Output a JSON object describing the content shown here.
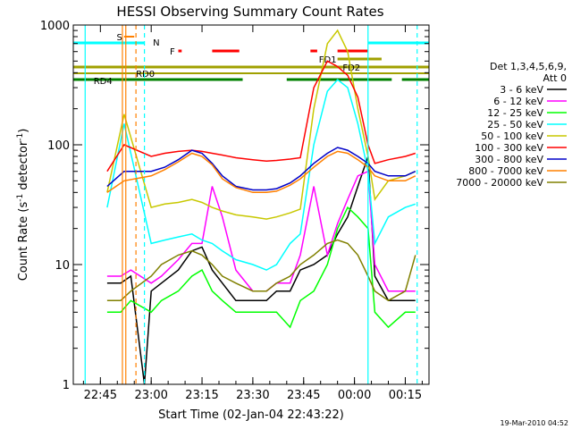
{
  "chart_data": {
    "type": "line",
    "title": "HESSI Observing Summary Count Rates",
    "xlabel": "Start Time (02-Jan-04 22:43:22)",
    "ylabel_main": "Count Rate (s",
    "ylabel_sup1": "-1",
    "ylabel_mid": " detector",
    "ylabel_sup2": "-1",
    "ylabel_end": ")",
    "timestamp": "19-Mar-2010 04:52",
    "x_range_minutes": [
      -3.37,
      25.0
    ],
    "y_range": [
      1,
      1000
    ],
    "y_scale": "log",
    "x_ticks": [
      {
        "label": "22:45",
        "t": -15
      },
      {
        "label": "23:00",
        "t": 0
      },
      {
        "label": "23:15",
        "t": 15
      },
      {
        "label": "23:30",
        "t": 30
      },
      {
        "label": "23:45",
        "t": 45
      },
      {
        "label": "00:00",
        "t": 60
      },
      {
        "label": "00:15",
        "t": 75
      }
    ],
    "y_ticks": [
      {
        "label": "1",
        "v": 1
      },
      {
        "label": "10",
        "v": 10
      },
      {
        "label": "100",
        "v": 100
      },
      {
        "label": "1000",
        "v": 1000
      }
    ],
    "legend": {
      "header1": "Det 1,3,4,5,6,9,",
      "header2": "Att 0",
      "entries": [
        {
          "name": "3 - 6 keV",
          "color": "#000000"
        },
        {
          "name": "6 - 12 keV",
          "color": "#ff00ff"
        },
        {
          "name": "12 - 25 keV",
          "color": "#00ff00"
        },
        {
          "name": "25 - 50 keV",
          "color": "#00ffff"
        },
        {
          "name": "50 - 100 keV",
          "color": "#c8c800"
        },
        {
          "name": "100 - 300 keV",
          "color": "#ff0000"
        },
        {
          "name": "300 - 800 keV",
          "color": "#0000c8"
        },
        {
          "name": "800 - 7000 keV",
          "color": "#ff8000"
        },
        {
          "name": "7000 - 20000 keV",
          "color": "#808000"
        }
      ]
    },
    "flags": [
      {
        "label": "S",
        "color": "#ff8000"
      },
      {
        "label": "N",
        "color": "#00ffff"
      },
      {
        "label": "F",
        "color": "#ff0000"
      },
      {
        "label": "FD1",
        "color": "#a0a000"
      },
      {
        "label": "FD2",
        "color": "#a0a000"
      },
      {
        "label": "RD0",
        "color": "#a0a000"
      },
      {
        "label": "RD4",
        "color": "#008000"
      }
    ],
    "series": [
      {
        "name": "3 - 6 keV",
        "color": "#000000",
        "points": [
          [
            -13,
            7
          ],
          [
            -9,
            7
          ],
          [
            -6,
            8
          ],
          [
            -2,
            1
          ],
          [
            0,
            6
          ],
          [
            3,
            7
          ],
          [
            8,
            9
          ],
          [
            12,
            13
          ],
          [
            15,
            14
          ],
          [
            18,
            9
          ],
          [
            21,
            7
          ],
          [
            25,
            5
          ],
          [
            30,
            5
          ],
          [
            34,
            5
          ],
          [
            37,
            6
          ],
          [
            41,
            6
          ],
          [
            44,
            9
          ],
          [
            48,
            10
          ],
          [
            52,
            12
          ],
          [
            55,
            18
          ],
          [
            58,
            25
          ],
          [
            61,
            45
          ],
          [
            64,
            80
          ],
          [
            66,
            8
          ],
          [
            70,
            5
          ],
          [
            75,
            5
          ],
          [
            78,
            5
          ]
        ]
      },
      {
        "name": "6 - 12 keV",
        "color": "#ff00ff",
        "points": [
          [
            -13,
            8
          ],
          [
            -9,
            8
          ],
          [
            -6,
            9
          ],
          [
            0,
            7
          ],
          [
            3,
            8
          ],
          [
            8,
            11
          ],
          [
            12,
            15
          ],
          [
            15,
            15
          ],
          [
            18,
            45
          ],
          [
            21,
            25
          ],
          [
            25,
            9
          ],
          [
            30,
            6
          ],
          [
            34,
            6
          ],
          [
            37,
            7
          ],
          [
            41,
            7
          ],
          [
            44,
            12
          ],
          [
            48,
            45
          ],
          [
            52,
            12
          ],
          [
            55,
            22
          ],
          [
            58,
            35
          ],
          [
            61,
            55
          ],
          [
            64,
            60
          ],
          [
            66,
            10
          ],
          [
            70,
            6
          ],
          [
            75,
            6
          ],
          [
            78,
            6
          ]
        ]
      },
      {
        "name": "12 - 25 keV",
        "color": "#00ff00",
        "points": [
          [
            -13,
            4
          ],
          [
            -9,
            4
          ],
          [
            -6,
            5
          ],
          [
            0,
            4
          ],
          [
            3,
            5
          ],
          [
            8,
            6
          ],
          [
            12,
            8
          ],
          [
            15,
            9
          ],
          [
            18,
            6
          ],
          [
            21,
            5
          ],
          [
            25,
            4
          ],
          [
            30,
            4
          ],
          [
            34,
            4
          ],
          [
            37,
            4
          ],
          [
            41,
            3
          ],
          [
            44,
            5
          ],
          [
            48,
            6
          ],
          [
            52,
            10
          ],
          [
            55,
            20
          ],
          [
            58,
            30
          ],
          [
            61,
            25
          ],
          [
            64,
            20
          ],
          [
            66,
            4
          ],
          [
            70,
            3
          ],
          [
            75,
            4
          ],
          [
            78,
            4
          ]
        ]
      },
      {
        "name": "25 - 50 keV",
        "color": "#00ffff",
        "points": [
          [
            -13,
            30
          ],
          [
            -8,
            150
          ],
          [
            0,
            15
          ],
          [
            4,
            16
          ],
          [
            8,
            17
          ],
          [
            12,
            18
          ],
          [
            15,
            16
          ],
          [
            18,
            15
          ],
          [
            21,
            13
          ],
          [
            25,
            11
          ],
          [
            30,
            10
          ],
          [
            34,
            9
          ],
          [
            37,
            10
          ],
          [
            41,
            15
          ],
          [
            44,
            18
          ],
          [
            48,
            100
          ],
          [
            52,
            280
          ],
          [
            55,
            350
          ],
          [
            58,
            300
          ],
          [
            61,
            150
          ],
          [
            64,
            60
          ],
          [
            66,
            15
          ],
          [
            70,
            25
          ],
          [
            75,
            30
          ],
          [
            78,
            32
          ]
        ]
      },
      {
        "name": "50 - 100 keV",
        "color": "#c8c800",
        "points": [
          [
            -13,
            40
          ],
          [
            -8,
            180
          ],
          [
            0,
            30
          ],
          [
            4,
            32
          ],
          [
            8,
            33
          ],
          [
            12,
            35
          ],
          [
            15,
            33
          ],
          [
            18,
            30
          ],
          [
            21,
            28
          ],
          [
            25,
            26
          ],
          [
            30,
            25
          ],
          [
            34,
            24
          ],
          [
            37,
            25
          ],
          [
            41,
            27
          ],
          [
            44,
            29
          ],
          [
            48,
            200
          ],
          [
            52,
            700
          ],
          [
            55,
            900
          ],
          [
            58,
            600
          ],
          [
            61,
            200
          ],
          [
            64,
            80
          ],
          [
            66,
            35
          ],
          [
            70,
            50
          ],
          [
            75,
            55
          ],
          [
            78,
            60
          ]
        ]
      },
      {
        "name": "100 - 300 keV",
        "color": "#ff0000",
        "points": [
          [
            -13,
            60
          ],
          [
            -8,
            100
          ],
          [
            0,
            80
          ],
          [
            4,
            85
          ],
          [
            8,
            88
          ],
          [
            12,
            90
          ],
          [
            15,
            88
          ],
          [
            18,
            85
          ],
          [
            21,
            82
          ],
          [
            25,
            78
          ],
          [
            30,
            75
          ],
          [
            34,
            73
          ],
          [
            37,
            74
          ],
          [
            41,
            76
          ],
          [
            44,
            78
          ],
          [
            48,
            300
          ],
          [
            52,
            500
          ],
          [
            55,
            450
          ],
          [
            58,
            380
          ],
          [
            61,
            250
          ],
          [
            64,
            100
          ],
          [
            66,
            70
          ],
          [
            70,
            75
          ],
          [
            75,
            80
          ],
          [
            78,
            85
          ]
        ]
      },
      {
        "name": "300 - 800 keV",
        "color": "#0000c8",
        "points": [
          [
            -13,
            45
          ],
          [
            -8,
            60
          ],
          [
            0,
            60
          ],
          [
            4,
            65
          ],
          [
            8,
            75
          ],
          [
            12,
            90
          ],
          [
            15,
            85
          ],
          [
            18,
            70
          ],
          [
            21,
            55
          ],
          [
            25,
            45
          ],
          [
            30,
            42
          ],
          [
            34,
            42
          ],
          [
            37,
            43
          ],
          [
            41,
            48
          ],
          [
            44,
            55
          ],
          [
            48,
            70
          ],
          [
            52,
            85
          ],
          [
            55,
            95
          ],
          [
            58,
            90
          ],
          [
            61,
            80
          ],
          [
            64,
            70
          ],
          [
            66,
            60
          ],
          [
            70,
            55
          ],
          [
            75,
            55
          ],
          [
            78,
            60
          ]
        ]
      },
      {
        "name": "800 - 7000 keV",
        "color": "#ff8000",
        "points": [
          [
            -13,
            40
          ],
          [
            -8,
            50
          ],
          [
            0,
            55
          ],
          [
            4,
            62
          ],
          [
            8,
            72
          ],
          [
            12,
            85
          ],
          [
            15,
            80
          ],
          [
            18,
            68
          ],
          [
            21,
            52
          ],
          [
            25,
            44
          ],
          [
            30,
            40
          ],
          [
            34,
            40
          ],
          [
            37,
            41
          ],
          [
            41,
            46
          ],
          [
            44,
            52
          ],
          [
            48,
            65
          ],
          [
            52,
            80
          ],
          [
            55,
            88
          ],
          [
            58,
            85
          ],
          [
            61,
            75
          ],
          [
            64,
            65
          ],
          [
            66,
            55
          ],
          [
            70,
            50
          ],
          [
            75,
            50
          ],
          [
            78,
            55
          ]
        ]
      },
      {
        "name": "7000 - 20000 keV",
        "color": "#808000",
        "points": [
          [
            -13,
            5
          ],
          [
            -9,
            5
          ],
          [
            -6,
            6
          ],
          [
            0,
            8
          ],
          [
            3,
            10
          ],
          [
            8,
            12
          ],
          [
            12,
            13
          ],
          [
            15,
            12
          ],
          [
            18,
            10
          ],
          [
            21,
            8
          ],
          [
            25,
            7
          ],
          [
            30,
            6
          ],
          [
            34,
            6
          ],
          [
            37,
            7
          ],
          [
            41,
            8
          ],
          [
            44,
            10
          ],
          [
            48,
            12
          ],
          [
            52,
            15
          ],
          [
            55,
            16
          ],
          [
            58,
            15
          ],
          [
            61,
            12
          ],
          [
            64,
            8
          ],
          [
            66,
            6
          ],
          [
            70,
            5
          ],
          [
            75,
            6
          ],
          [
            78,
            12
          ]
        ]
      }
    ]
  }
}
